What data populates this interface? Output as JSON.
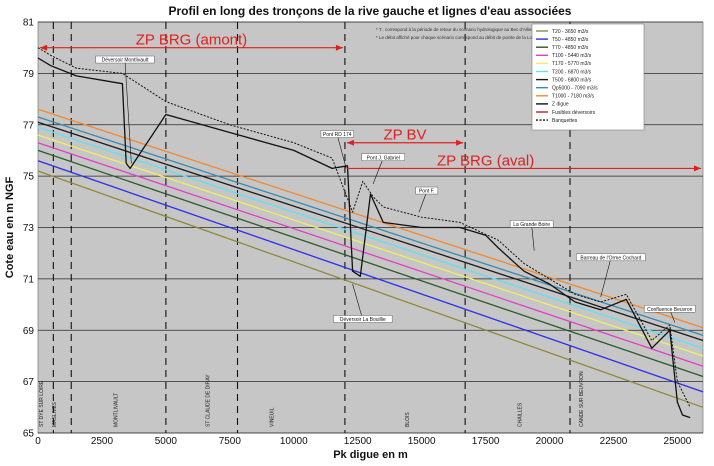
{
  "chart_data": {
    "type": "line",
    "title": "Profil en long des tronçons de la rive gauche et lignes d'eau associées",
    "xlabel": "Pk digue en m",
    "ylabel": "Cote eau en m NGF",
    "xlim": [
      0,
      26000
    ],
    "ylim": [
      65,
      81
    ],
    "xticks": [
      0,
      2500,
      5000,
      7500,
      10000,
      12500,
      15000,
      17500,
      20000,
      22500,
      25000
    ],
    "yticks": [
      65,
      67,
      69,
      71,
      73,
      75,
      77,
      79,
      81
    ],
    "grid": true,
    "legend_position": "top-right",
    "notes": [
      "* T.. correspond à la période de retour du scénario hydrologique au Bec d'Allier.",
      "* Le débit affiché pour chaque scénario correspond au débit de pointe de la Loire à l'entrée du val de Blois (St-Dyé-sur-Loire)"
    ],
    "series": [
      {
        "name": "T20 - 3650 m3/s",
        "color": "#8f8a3a",
        "x": [
          0,
          26000
        ],
        "y": [
          75.2,
          66.0
        ]
      },
      {
        "name": "T50 - 4850 m3/s",
        "color": "#2d2df0",
        "x": [
          0,
          26000
        ],
        "y": [
          75.6,
          66.6
        ]
      },
      {
        "name": "T70 - 4850 m3/s",
        "color": "#2a5a2a",
        "x": [
          0,
          26000
        ],
        "y": [
          76.0,
          67.2
        ]
      },
      {
        "name": "T100 - 5440 m3/s",
        "color": "#e040c0",
        "x": [
          0,
          26000
        ],
        "y": [
          76.3,
          67.6
        ]
      },
      {
        "name": "T170 - 5770 m3/s",
        "color": "#f0f060",
        "x": [
          0,
          26000
        ],
        "y": [
          76.6,
          68.0
        ]
      },
      {
        "name": "T200 - 6870 m3/s",
        "color": "#60e0f0",
        "x": [
          0,
          26000
        ],
        "y": [
          76.9,
          68.3
        ]
      },
      {
        "name": "T500 - 6800 m3/s",
        "color": "#1a1a1a",
        "x": [
          0,
          26000
        ],
        "y": [
          77.1,
          68.6
        ]
      },
      {
        "name": "Qp5000 - 7090 m3/s",
        "color": "#3a8ab0",
        "x": [
          0,
          26000
        ],
        "y": [
          77.3,
          68.8
        ]
      },
      {
        "name": "T1000 - 7180 m3/s",
        "color": "#f08a30",
        "x": [
          0,
          26000
        ],
        "y": [
          77.6,
          69.1
        ]
      },
      {
        "name": "Z digue",
        "color": "#111111",
        "x": [
          0,
          500,
          1500,
          3300,
          3450,
          3600,
          5000,
          7500,
          10000,
          11500,
          12100,
          12300,
          12600,
          13000,
          13500,
          15000,
          16500,
          17500,
          18000,
          19000,
          20000,
          21000,
          22000,
          23000,
          24000,
          24700,
          25000,
          25200,
          25500
        ],
        "y": [
          79.6,
          79.3,
          78.9,
          78.6,
          75.5,
          75.3,
          77.4,
          76.7,
          76.0,
          75.3,
          75.4,
          71.3,
          71.1,
          74.3,
          73.2,
          73.0,
          73.0,
          72.7,
          72.2,
          71.3,
          70.8,
          70.1,
          69.8,
          70.2,
          68.3,
          69.0,
          66.2,
          65.7,
          65.6
        ]
      },
      {
        "name": "Fusibles déversoirs",
        "color": "#c02020",
        "x": [],
        "y": []
      },
      {
        "name": "Banquettes",
        "color": "#111111",
        "x": [
          0,
          500,
          1500,
          3300,
          5000,
          7500,
          10000,
          11500,
          12300,
          12700,
          13100,
          13500,
          15000,
          16500,
          18000,
          19000,
          20000,
          21000,
          22000,
          23000,
          24000,
          24700,
          25000,
          25500
        ],
        "y": [
          80.0,
          79.7,
          79.2,
          79.0,
          77.9,
          77.0,
          76.3,
          75.7,
          73.6,
          74.8,
          74.2,
          73.8,
          73.4,
          73.2,
          72.5,
          71.6,
          71.0,
          70.4,
          70.1,
          70.4,
          68.6,
          69.2,
          67.0,
          66.0
        ]
      }
    ],
    "vlines": [
      600,
      1300,
      5000,
      7800,
      12000,
      16700,
      20800
    ],
    "zones": [
      {
        "label": "ZP BRG (amont)",
        "x0": 0,
        "x1": 12000,
        "y": 80.0
      },
      {
        "label": "ZP BV",
        "x0": 12000,
        "x1": 16700,
        "y": 76.3
      },
      {
        "label": "ZP BRG (aval)",
        "x0": 12000,
        "x1": 26000,
        "y": 75.3
      }
    ],
    "place_names": [
      {
        "label": "ST DYE SUR LOIRE",
        "x": 200
      },
      {
        "label": "MASLIVES",
        "x": 700
      },
      {
        "label": "MONTLIVAULT",
        "x": 3100
      },
      {
        "label": "ST CLAUDE DE DIRAY",
        "x": 6700
      },
      {
        "label": "VINEUIL",
        "x": 9200
      },
      {
        "label": "BLOIS",
        "x": 14500
      },
      {
        "label": "CHAILLES",
        "x": 18900
      },
      {
        "label": "CANDE SUR BEUVRON",
        "x": 21300
      }
    ],
    "annotations": [
      {
        "label": "Déversoir Montlivault",
        "x": 3400,
        "y": 79.5,
        "tx": 3650,
        "ty": 75.5
      },
      {
        "label": "Pont RD 174",
        "x": 11700,
        "y": 76.6,
        "tx": 12050,
        "ty": 75.3
      },
      {
        "label": "Pont J. Gabriel",
        "x": 13500,
        "y": 75.7,
        "tx": 13100,
        "ty": 74.7
      },
      {
        "label": "Pont F.",
        "x": 15200,
        "y": 74.4,
        "tx": 14900,
        "ty": 73.6
      },
      {
        "label": "La Grande Boire",
        "x": 19300,
        "y": 73.1,
        "tx": 19400,
        "ty": 72.1
      },
      {
        "label": "Barreau de l'Orme Cochard",
        "x": 22400,
        "y": 71.8,
        "tx": 22000,
        "ty": 70.3
      },
      {
        "label": "Confluence Beuvron",
        "x": 24700,
        "y": 69.8,
        "tx": 24900,
        "ty": 69.3
      },
      {
        "label": "Déversoir La Bouillie",
        "x": 12700,
        "y": 69.4,
        "tx": 12300,
        "ty": 70.8
      }
    ]
  }
}
